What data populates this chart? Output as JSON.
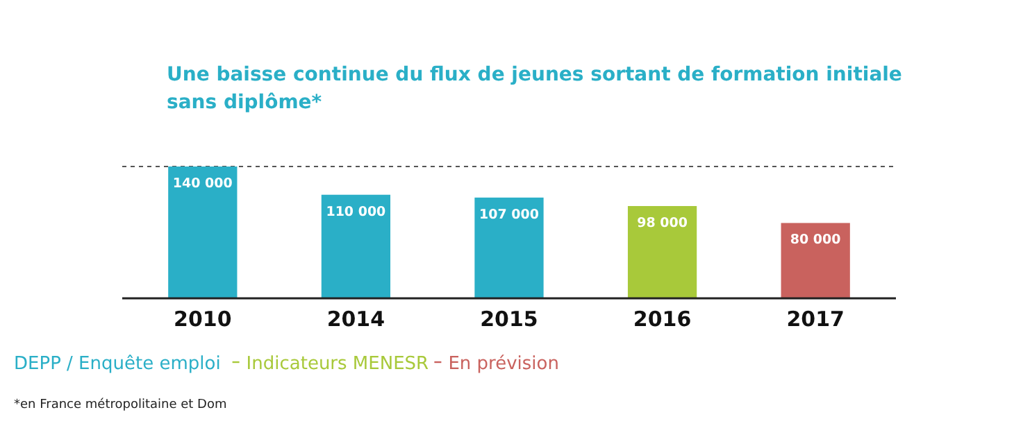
{
  "chart_data": {
    "type": "bar",
    "title": "Une baisse continue du flux de jeunes sortant de formation initiale sans diplôme*",
    "categories": [
      "2010",
      "2014",
      "2015",
      "2016",
      "2017"
    ],
    "series": [
      {
        "name": "DEPP / Enquête emploi",
        "color": "#2aafc7",
        "values": [
          140000,
          110000,
          107000,
          null,
          null
        ]
      },
      {
        "name": "Indicateurs MENESR",
        "color": "#a8c93a",
        "values": [
          null,
          null,
          null,
          98000,
          null
        ]
      },
      {
        "name": "En prévision",
        "color": "#c9625e",
        "values": [
          null,
          null,
          null,
          null,
          80000
        ]
      }
    ],
    "stacked": true,
    "ylim": [
      0,
      140000
    ],
    "data_labels": true,
    "legend": "bottom",
    "tick_labels": "x",
    "ref_lines": [
      {
        "axis": "y",
        "value": 140000,
        "line_style": "dashed",
        "color": "#555555"
      }
    ],
    "annotations": [
      "*en France métropolitaine et Dom"
    ]
  }
}
